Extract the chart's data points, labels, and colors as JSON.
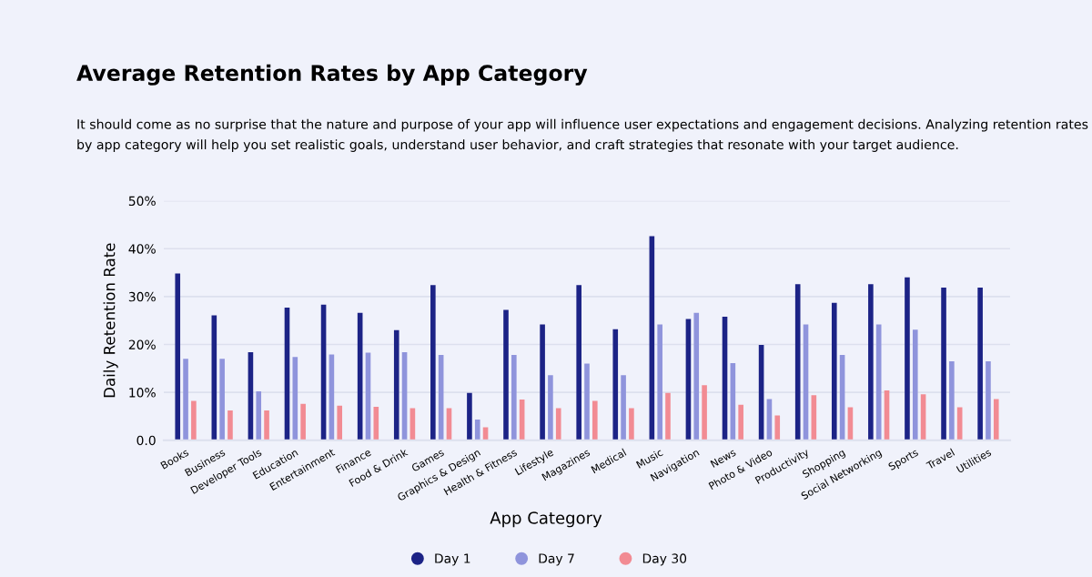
{
  "chart_data": {
    "type": "bar",
    "title": "Average Retention Rates by App Category",
    "subtitle": "It should come as no surprise that the nature and purpose of your app will influence user expectations and engagement decisions. Analyzing retention rates by app category will help you set realistic goals, understand user behavior, and craft strategies that resonate with your target audience.",
    "xlabel": "App Category",
    "ylabel": "Daily Retention Rate",
    "categories": [
      "Books",
      "Business",
      "Developer Tools",
      "Education",
      "Entertainment",
      "Finance",
      "Food & Drink",
      "Games",
      "Graphics & Design",
      "Health & Fitness",
      "Lifestyle",
      "Magazines",
      "Medical",
      "Music",
      "Navigation",
      "News",
      "Photo & Video",
      "Productivity",
      "Shopping",
      "Social Networking",
      "Sports",
      "Travel",
      "Utilities"
    ],
    "series": [
      {
        "name": "Day 1",
        "color": "#1c2386",
        "values": [
          34.8,
          26.1,
          18.4,
          27.7,
          28.3,
          26.6,
          23.0,
          32.4,
          9.9,
          27.2,
          24.2,
          32.4,
          23.2,
          42.6,
          25.3,
          25.8,
          19.9,
          32.6,
          28.7,
          32.6,
          34.0,
          31.9,
          31.9
        ]
      },
      {
        "name": "Day 7",
        "color": "#8f94dc",
        "values": [
          17.0,
          17.0,
          10.2,
          17.4,
          17.9,
          18.3,
          18.4,
          17.8,
          4.3,
          17.8,
          13.6,
          16.0,
          13.6,
          24.2,
          26.6,
          16.1,
          8.6,
          24.2,
          17.8,
          24.2,
          23.1,
          16.5,
          16.5
        ]
      },
      {
        "name": "Day 30",
        "color": "#f28b93",
        "values": [
          8.2,
          6.2,
          6.2,
          7.6,
          7.2,
          7.0,
          6.7,
          6.7,
          2.7,
          8.5,
          6.7,
          8.2,
          6.7,
          9.9,
          11.5,
          7.4,
          5.2,
          9.4,
          6.9,
          10.4,
          9.6,
          6.9,
          8.6
        ]
      }
    ],
    "ylim": [
      0,
      50
    ],
    "yticks": [
      {
        "value": 0,
        "label": "0.0"
      },
      {
        "value": 10,
        "label": "10%"
      },
      {
        "value": 20,
        "label": "20%"
      },
      {
        "value": 30,
        "label": "30%"
      },
      {
        "value": 40,
        "label": "40%"
      },
      {
        "value": 50,
        "label": "50%"
      }
    ],
    "grid": "y",
    "legend": "bottom",
    "marker": "circle"
  }
}
